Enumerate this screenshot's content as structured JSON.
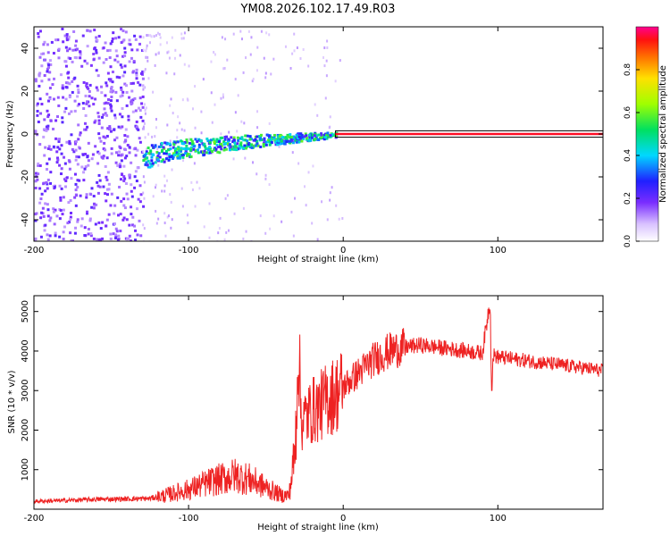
{
  "title": "YM08.2026.102.17.49.R03",
  "colors": {
    "line": "#ee2222",
    "axis": "#000000"
  },
  "chart_data": [
    {
      "type": "heatmap",
      "xlabel": "Height of straight line (km)",
      "ylabel": "Frequency (Hz)",
      "xlim": [
        -200,
        168
      ],
      "ylim": [
        -50,
        50
      ],
      "xticks": [
        -200,
        -100,
        0,
        100
      ],
      "yticks": [
        40,
        20,
        0,
        -20,
        -40
      ],
      "colorbar": {
        "label": "Normalized spectral amplitude",
        "range": [
          0,
          1
        ],
        "ticks": [
          "0.0",
          "0.2",
          "0.4",
          "0.6",
          "0.8"
        ],
        "tick_values": [
          0,
          0.2,
          0.4,
          0.6,
          0.8
        ]
      },
      "features": [
        {
          "name": "noise region",
          "x_range": [
            -200,
            -130
          ],
          "amplitude": 0.2
        },
        {
          "name": "rising echo trace",
          "x_range": [
            -130,
            -5
          ],
          "freq_start": -12,
          "freq_end": 0,
          "amplitude": 0.45
        },
        {
          "name": "steady trace at 0 Hz",
          "x_range": [
            -5,
            168
          ],
          "freq": 0,
          "amplitude": 0.95
        }
      ]
    },
    {
      "type": "line",
      "xlabel": "Height of straight line (km)",
      "ylabel": "SNR (10 * v/v)",
      "xlim": [
        -200,
        168
      ],
      "ylim": [
        0,
        5400
      ],
      "xticks": [
        -200,
        -100,
        0,
        100
      ],
      "yticks": [
        1000,
        2000,
        3000,
        4000,
        5000
      ],
      "series": [
        {
          "name": "SNR",
          "x": [
            -200,
            -180,
            -160,
            -140,
            -125,
            -115,
            -100,
            -85,
            -70,
            -60,
            -50,
            -40,
            -35,
            -31,
            -29,
            -27,
            -25,
            -20,
            -15,
            -10,
            -5,
            0,
            10,
            20,
            30,
            40,
            50,
            60,
            70,
            80,
            90,
            95,
            96,
            97,
            100,
            110,
            120,
            130,
            140,
            150,
            160,
            168
          ],
          "y": [
            200,
            220,
            250,
            260,
            270,
            350,
            500,
            700,
            850,
            750,
            550,
            350,
            350,
            1500,
            4200,
            2200,
            2300,
            2500,
            2600,
            2800,
            2900,
            3100,
            3450,
            3800,
            4000,
            4100,
            4150,
            4100,
            4050,
            4000,
            3950,
            5300,
            2900,
            3900,
            3850,
            3800,
            3750,
            3700,
            3650,
            3600,
            3550,
            3500
          ]
        }
      ]
    }
  ]
}
